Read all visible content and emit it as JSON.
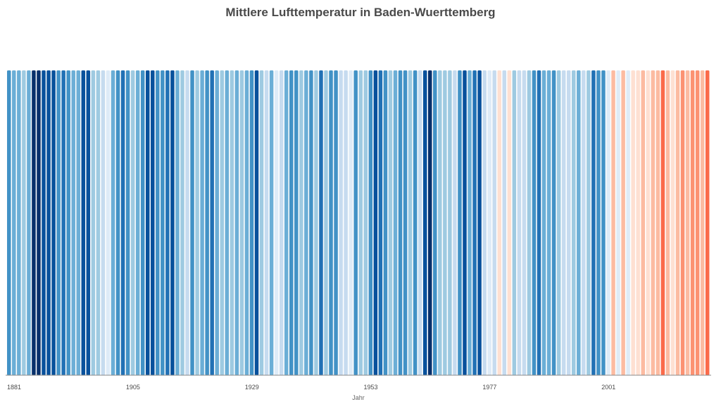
{
  "chart_data": {
    "type": "bar",
    "title": "Mittlere Lufttemperatur in Baden-Wuerttemberg",
    "xlabel": "Jahr",
    "ylabel": "",
    "x_tick_labels": [
      "1881",
      "1905",
      "1929",
      "1953",
      "1977",
      "2001"
    ],
    "year_start": 1881,
    "year_end": 2022,
    "legend": "none",
    "grid": false,
    "color_scale": [
      "#08306b",
      "#08519c",
      "#2171b5",
      "#4292c6",
      "#6baed6",
      "#9ecae1",
      "#c6dbef",
      "#deebf7",
      "#fee0d2",
      "#fcbba1",
      "#fc9272",
      "#fb6a4a",
      "#ef3b2c",
      "#cb181d",
      "#a50f15",
      "#67000d"
    ],
    "color_levels": [
      3,
      4,
      4,
      5,
      4,
      0,
      0,
      1,
      1,
      1,
      3,
      2,
      3,
      4,
      4,
      1,
      1,
      5,
      5,
      6,
      7,
      4,
      3,
      2,
      3,
      5,
      4,
      3,
      1,
      1,
      3,
      3,
      2,
      1,
      4,
      5,
      6,
      3,
      5,
      4,
      3,
      2,
      4,
      5,
      4,
      5,
      4,
      5,
      4,
      3,
      1,
      5,
      6,
      4,
      7,
      6,
      4,
      3,
      3,
      5,
      4,
      3,
      5,
      2,
      5,
      3,
      3,
      6,
      6,
      7,
      3,
      5,
      5,
      3,
      1,
      2,
      3,
      5,
      4,
      3,
      3,
      5,
      3,
      6,
      1,
      0,
      3,
      5,
      5,
      5,
      6,
      3,
      1,
      4,
      2,
      1,
      6,
      7,
      6,
      8,
      6,
      8,
      5,
      6,
      6,
      5,
      3,
      2,
      4,
      4,
      3,
      5,
      6,
      6,
      5,
      4,
      6,
      5,
      2,
      3,
      3,
      7,
      9,
      7,
      9,
      7,
      8,
      8,
      9,
      8,
      9,
      9,
      11,
      9,
      8,
      9,
      10,
      9,
      10,
      10,
      9,
      11
    ]
  }
}
